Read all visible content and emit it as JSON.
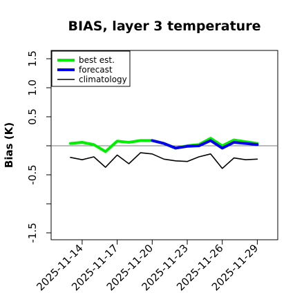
{
  "chart_data": {
    "type": "line",
    "title": "BIAS, layer 3 temperature",
    "xlabel": "",
    "ylabel": "Bias (K)",
    "ylim": [
      -1.6,
      1.6
    ],
    "yticks": [
      "-1.5",
      "-0.5",
      "0.5",
      "1.0",
      "1.5"
    ],
    "xtick_labels": [
      "2025-11-14",
      "2025-11-17",
      "2025-11-20",
      "2025-11-23",
      "2025-11-26",
      "2025-11-29"
    ],
    "highlight_tick": "2025-11-20",
    "highlight_color": "#228B22",
    "legend_position": "top-left",
    "legend": [
      "best est.",
      "forecast",
      "climatology"
    ],
    "series": [
      {
        "name": "best est.",
        "color": "#00ee00",
        "x": [
          "2025-11-13",
          "2025-11-14",
          "2025-11-15",
          "2025-11-16",
          "2025-11-17",
          "2025-11-18",
          "2025-11-19",
          "2025-11-20",
          "2025-11-21",
          "2025-11-22",
          "2025-11-23",
          "2025-11-24",
          "2025-11-25",
          "2025-11-26",
          "2025-11-27",
          "2025-11-28",
          "2025-11-29"
        ],
        "values": [
          0.04,
          0.06,
          0.02,
          -0.1,
          0.08,
          0.06,
          0.09,
          0.09,
          0.04,
          -0.04,
          0.0,
          0.02,
          0.13,
          0.0,
          0.1,
          0.07,
          0.04
        ]
      },
      {
        "name": "forecast",
        "color": "#0000ee",
        "x": [
          "2025-11-20",
          "2025-11-21",
          "2025-11-22",
          "2025-11-23",
          "2025-11-24",
          "2025-11-25",
          "2025-11-26",
          "2025-11-27",
          "2025-11-28",
          "2025-11-29"
        ],
        "values": [
          0.09,
          0.04,
          -0.04,
          -0.01,
          0.0,
          0.09,
          -0.04,
          0.06,
          0.04,
          0.02
        ]
      },
      {
        "name": "climatology",
        "color": "#000000",
        "x": [
          "2025-11-13",
          "2025-11-14",
          "2025-11-15",
          "2025-11-16",
          "2025-11-17",
          "2025-11-18",
          "2025-11-19",
          "2025-11-20",
          "2025-11-21",
          "2025-11-22",
          "2025-11-23",
          "2025-11-24",
          "2025-11-25",
          "2025-11-26",
          "2025-11-27",
          "2025-11-28",
          "2025-11-29"
        ],
        "values": [
          -0.2,
          -0.24,
          -0.19,
          -0.37,
          -0.16,
          -0.31,
          -0.12,
          -0.14,
          -0.23,
          -0.26,
          -0.27,
          -0.19,
          -0.14,
          -0.39,
          -0.21,
          -0.24,
          -0.23
        ]
      }
    ],
    "reference_line": 0
  }
}
